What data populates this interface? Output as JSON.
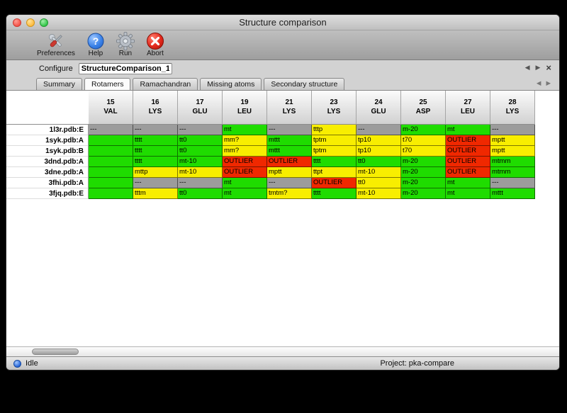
{
  "window": {
    "title": "Structure comparison"
  },
  "toolbar": {
    "items": [
      {
        "label": "Preferences",
        "icon": "preferences-tools-icon"
      },
      {
        "label": "Help",
        "icon": "help-icon"
      },
      {
        "label": "Run",
        "icon": "run-gear-icon"
      },
      {
        "label": "Abort",
        "icon": "abort-icon"
      }
    ]
  },
  "configure": {
    "label": "Configure",
    "value": "StructureComparison_1",
    "nav": {
      "back": "◀",
      "forward": "▶",
      "close": "×"
    }
  },
  "tabs": {
    "items": [
      {
        "label": "Summary",
        "active": false
      },
      {
        "label": "Rotamers",
        "active": true
      },
      {
        "label": "Ramachandran",
        "active": false
      },
      {
        "label": "Missing atoms",
        "active": false
      },
      {
        "label": "Secondary structure",
        "active": false
      }
    ],
    "scroll_left": "◀",
    "scroll_right": "▶"
  },
  "grid": {
    "columns": [
      [
        "15",
        "VAL"
      ],
      [
        "16",
        "LYS"
      ],
      [
        "17",
        "GLU"
      ],
      [
        "19",
        "LEU"
      ],
      [
        "21",
        "LYS"
      ],
      [
        "23",
        "LYS"
      ],
      [
        "24",
        "GLU"
      ],
      [
        "25",
        "ASP"
      ],
      [
        "27",
        "LEU"
      ],
      [
        "28",
        "LYS"
      ]
    ],
    "cell_colors": {
      "green": "#1fdc00",
      "yellow": "#f8ee00",
      "red": "#f02800",
      "gray": "#9c9c9c"
    },
    "rows": [
      {
        "label": "1l3r.pdb:E",
        "cells": [
          [
            "---",
            "gray"
          ],
          [
            "---",
            "gray"
          ],
          [
            "---",
            "gray"
          ],
          [
            "mt",
            "green"
          ],
          [
            "---",
            "gray"
          ],
          [
            "tttp",
            "yellow"
          ],
          [
            "---",
            "gray"
          ],
          [
            "m-20",
            "green"
          ],
          [
            "mt",
            "green"
          ],
          [
            "---",
            "gray"
          ]
        ]
      },
      {
        "label": "1syk.pdb:A",
        "cells": [
          [
            "",
            "green"
          ],
          [
            "tttt",
            "green"
          ],
          [
            "tt0",
            "green"
          ],
          [
            "mm?",
            "yellow"
          ],
          [
            "mttt",
            "green"
          ],
          [
            "tptm",
            "yellow"
          ],
          [
            "tp10",
            "yellow"
          ],
          [
            "t70",
            "yellow"
          ],
          [
            "OUTLIER",
            "red"
          ],
          [
            "mptt",
            "yellow"
          ]
        ]
      },
      {
        "label": "1syk.pdb:B",
        "cells": [
          [
            "",
            "green"
          ],
          [
            "tttt",
            "green"
          ],
          [
            "tt0",
            "green"
          ],
          [
            "mm?",
            "yellow"
          ],
          [
            "mttt",
            "green"
          ],
          [
            "tptm",
            "yellow"
          ],
          [
            "tp10",
            "yellow"
          ],
          [
            "t70",
            "yellow"
          ],
          [
            "OUTLIER",
            "red"
          ],
          [
            "mptt",
            "yellow"
          ]
        ]
      },
      {
        "label": "3dnd.pdb:A",
        "cells": [
          [
            "",
            "green"
          ],
          [
            "tttt",
            "green"
          ],
          [
            "mt-10",
            "green"
          ],
          [
            "OUTLIER",
            "red"
          ],
          [
            "OUTLIER",
            "red"
          ],
          [
            "tttt",
            "green"
          ],
          [
            "tt0",
            "green"
          ],
          [
            "m-20",
            "green"
          ],
          [
            "OUTLIER",
            "red"
          ],
          [
            "mtmm",
            "green"
          ]
        ]
      },
      {
        "label": "3dne.pdb:A",
        "cells": [
          [
            "",
            "green"
          ],
          [
            "mttp",
            "yellow"
          ],
          [
            "mt-10",
            "yellow"
          ],
          [
            "OUTLIER",
            "red"
          ],
          [
            "mptt",
            "yellow"
          ],
          [
            "ttpt",
            "yellow"
          ],
          [
            "mt-10",
            "yellow"
          ],
          [
            "m-20",
            "green"
          ],
          [
            "OUTLIER",
            "red"
          ],
          [
            "mtmm",
            "green"
          ]
        ]
      },
      {
        "label": "3fhi.pdb:A",
        "cells": [
          [
            "",
            "green"
          ],
          [
            "---",
            "gray"
          ],
          [
            "---",
            "gray"
          ],
          [
            "mt",
            "green"
          ],
          [
            "---",
            "gray"
          ],
          [
            "OUTLIER",
            "red"
          ],
          [
            "tt0",
            "yellow"
          ],
          [
            "m-20",
            "green"
          ],
          [
            "mt",
            "green"
          ],
          [
            "---",
            "gray"
          ]
        ]
      },
      {
        "label": "3fjq.pdb:E",
        "cells": [
          [
            "",
            "green"
          ],
          [
            "tttm",
            "yellow"
          ],
          [
            "tt0",
            "green"
          ],
          [
            "mt",
            "green"
          ],
          [
            "tmtm?",
            "yellow"
          ],
          [
            "tttt",
            "green"
          ],
          [
            "mt-10",
            "yellow"
          ],
          [
            "m-20",
            "green"
          ],
          [
            "mt",
            "green"
          ],
          [
            "mttt",
            "green"
          ]
        ]
      }
    ]
  },
  "statusbar": {
    "status": "Idle",
    "project_label": "Project: pka-compare"
  }
}
